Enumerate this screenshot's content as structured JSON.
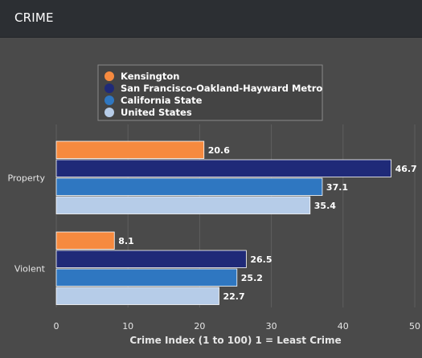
{
  "header": {
    "title": "CRIME"
  },
  "colors": {
    "kensington": "#f68a3f",
    "sf_metro": "#1f2a78",
    "california": "#2f77c1",
    "united_states": "#b6cce8"
  },
  "chart_data": {
    "type": "bar",
    "orientation": "horizontal",
    "title": "",
    "xlabel": "Crime Index (1 to 100) 1 = Least Crime",
    "ylabel": "",
    "categories": [
      "Property",
      "Violent"
    ],
    "xlim": [
      0,
      50
    ],
    "xticks": [
      0,
      10,
      20,
      30,
      40,
      50
    ],
    "grid": true,
    "legend_position": "top-center",
    "series": [
      {
        "name": "Kensington",
        "color": "#f68a3f",
        "values": [
          20.6,
          8.1
        ],
        "labels": [
          "20.6",
          "8.1"
        ]
      },
      {
        "name": "San Francisco-Oakland-Hayward Metro",
        "color": "#1f2a78",
        "values": [
          46.7,
          26.5
        ],
        "labels": [
          "46.7",
          "26.5"
        ]
      },
      {
        "name": "California State",
        "color": "#2f77c1",
        "values": [
          37.1,
          25.2
        ],
        "labels": [
          "37.1",
          "25.2"
        ]
      },
      {
        "name": "United States",
        "color": "#b6cce8",
        "values": [
          35.4,
          22.7
        ],
        "labels": [
          "35.4",
          "22.7"
        ]
      }
    ]
  }
}
